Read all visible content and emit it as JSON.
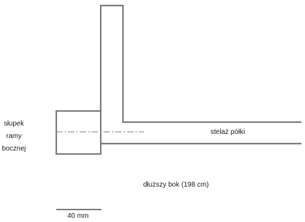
{
  "labels": {
    "post_line1": "słupek",
    "post_line2": "ramy",
    "post_line3": "bocznej",
    "shelf_frame": "stelaż półki",
    "long_side": "dłuższy bok (198 cm)",
    "scale": "40 mm"
  },
  "colors": {
    "outline": "#7a7a7a",
    "text": "#1a1a1a"
  }
}
